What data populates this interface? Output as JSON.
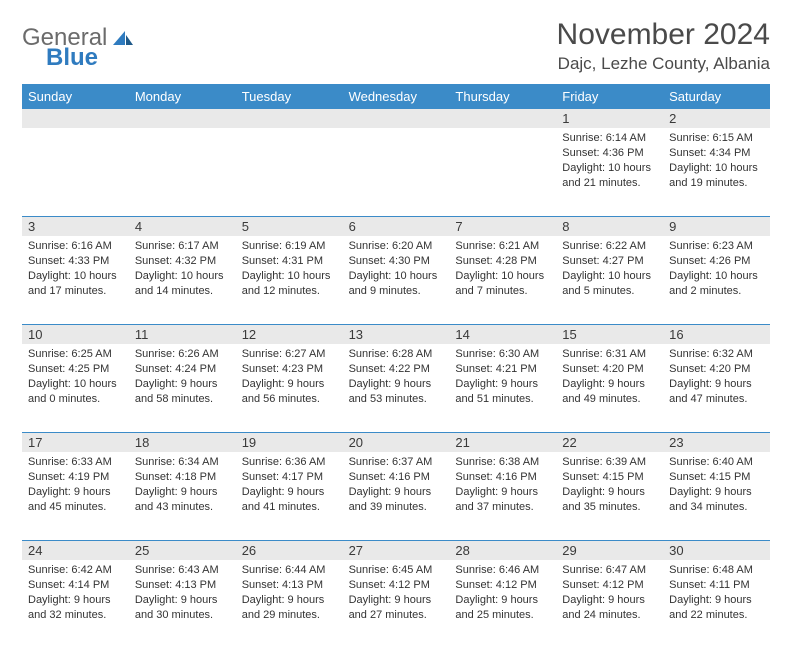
{
  "logo": {
    "general": "General",
    "blue": "Blue"
  },
  "title": "November 2024",
  "location": "Dajc, Lezhe County, Albania",
  "colors": {
    "header_bg": "#3b8bc8",
    "header_text": "#ffffff",
    "daynum_bg": "#e9e9e9",
    "divider": "#3b8bc8",
    "text": "#333333"
  },
  "day_names": [
    "Sunday",
    "Monday",
    "Tuesday",
    "Wednesday",
    "Thursday",
    "Friday",
    "Saturday"
  ],
  "weeks": [
    [
      null,
      null,
      null,
      null,
      null,
      {
        "n": "1",
        "sr": "Sunrise: 6:14 AM",
        "ss": "Sunset: 4:36 PM",
        "d1": "Daylight: 10 hours",
        "d2": "and 21 minutes."
      },
      {
        "n": "2",
        "sr": "Sunrise: 6:15 AM",
        "ss": "Sunset: 4:34 PM",
        "d1": "Daylight: 10 hours",
        "d2": "and 19 minutes."
      }
    ],
    [
      {
        "n": "3",
        "sr": "Sunrise: 6:16 AM",
        "ss": "Sunset: 4:33 PM",
        "d1": "Daylight: 10 hours",
        "d2": "and 17 minutes."
      },
      {
        "n": "4",
        "sr": "Sunrise: 6:17 AM",
        "ss": "Sunset: 4:32 PM",
        "d1": "Daylight: 10 hours",
        "d2": "and 14 minutes."
      },
      {
        "n": "5",
        "sr": "Sunrise: 6:19 AM",
        "ss": "Sunset: 4:31 PM",
        "d1": "Daylight: 10 hours",
        "d2": "and 12 minutes."
      },
      {
        "n": "6",
        "sr": "Sunrise: 6:20 AM",
        "ss": "Sunset: 4:30 PM",
        "d1": "Daylight: 10 hours",
        "d2": "and 9 minutes."
      },
      {
        "n": "7",
        "sr": "Sunrise: 6:21 AM",
        "ss": "Sunset: 4:28 PM",
        "d1": "Daylight: 10 hours",
        "d2": "and 7 minutes."
      },
      {
        "n": "8",
        "sr": "Sunrise: 6:22 AM",
        "ss": "Sunset: 4:27 PM",
        "d1": "Daylight: 10 hours",
        "d2": "and 5 minutes."
      },
      {
        "n": "9",
        "sr": "Sunrise: 6:23 AM",
        "ss": "Sunset: 4:26 PM",
        "d1": "Daylight: 10 hours",
        "d2": "and 2 minutes."
      }
    ],
    [
      {
        "n": "10",
        "sr": "Sunrise: 6:25 AM",
        "ss": "Sunset: 4:25 PM",
        "d1": "Daylight: 10 hours",
        "d2": "and 0 minutes."
      },
      {
        "n": "11",
        "sr": "Sunrise: 6:26 AM",
        "ss": "Sunset: 4:24 PM",
        "d1": "Daylight: 9 hours",
        "d2": "and 58 minutes."
      },
      {
        "n": "12",
        "sr": "Sunrise: 6:27 AM",
        "ss": "Sunset: 4:23 PM",
        "d1": "Daylight: 9 hours",
        "d2": "and 56 minutes."
      },
      {
        "n": "13",
        "sr": "Sunrise: 6:28 AM",
        "ss": "Sunset: 4:22 PM",
        "d1": "Daylight: 9 hours",
        "d2": "and 53 minutes."
      },
      {
        "n": "14",
        "sr": "Sunrise: 6:30 AM",
        "ss": "Sunset: 4:21 PM",
        "d1": "Daylight: 9 hours",
        "d2": "and 51 minutes."
      },
      {
        "n": "15",
        "sr": "Sunrise: 6:31 AM",
        "ss": "Sunset: 4:20 PM",
        "d1": "Daylight: 9 hours",
        "d2": "and 49 minutes."
      },
      {
        "n": "16",
        "sr": "Sunrise: 6:32 AM",
        "ss": "Sunset: 4:20 PM",
        "d1": "Daylight: 9 hours",
        "d2": "and 47 minutes."
      }
    ],
    [
      {
        "n": "17",
        "sr": "Sunrise: 6:33 AM",
        "ss": "Sunset: 4:19 PM",
        "d1": "Daylight: 9 hours",
        "d2": "and 45 minutes."
      },
      {
        "n": "18",
        "sr": "Sunrise: 6:34 AM",
        "ss": "Sunset: 4:18 PM",
        "d1": "Daylight: 9 hours",
        "d2": "and 43 minutes."
      },
      {
        "n": "19",
        "sr": "Sunrise: 6:36 AM",
        "ss": "Sunset: 4:17 PM",
        "d1": "Daylight: 9 hours",
        "d2": "and 41 minutes."
      },
      {
        "n": "20",
        "sr": "Sunrise: 6:37 AM",
        "ss": "Sunset: 4:16 PM",
        "d1": "Daylight: 9 hours",
        "d2": "and 39 minutes."
      },
      {
        "n": "21",
        "sr": "Sunrise: 6:38 AM",
        "ss": "Sunset: 4:16 PM",
        "d1": "Daylight: 9 hours",
        "d2": "and 37 minutes."
      },
      {
        "n": "22",
        "sr": "Sunrise: 6:39 AM",
        "ss": "Sunset: 4:15 PM",
        "d1": "Daylight: 9 hours",
        "d2": "and 35 minutes."
      },
      {
        "n": "23",
        "sr": "Sunrise: 6:40 AM",
        "ss": "Sunset: 4:15 PM",
        "d1": "Daylight: 9 hours",
        "d2": "and 34 minutes."
      }
    ],
    [
      {
        "n": "24",
        "sr": "Sunrise: 6:42 AM",
        "ss": "Sunset: 4:14 PM",
        "d1": "Daylight: 9 hours",
        "d2": "and 32 minutes."
      },
      {
        "n": "25",
        "sr": "Sunrise: 6:43 AM",
        "ss": "Sunset: 4:13 PM",
        "d1": "Daylight: 9 hours",
        "d2": "and 30 minutes."
      },
      {
        "n": "26",
        "sr": "Sunrise: 6:44 AM",
        "ss": "Sunset: 4:13 PM",
        "d1": "Daylight: 9 hours",
        "d2": "and 29 minutes."
      },
      {
        "n": "27",
        "sr": "Sunrise: 6:45 AM",
        "ss": "Sunset: 4:12 PM",
        "d1": "Daylight: 9 hours",
        "d2": "and 27 minutes."
      },
      {
        "n": "28",
        "sr": "Sunrise: 6:46 AM",
        "ss": "Sunset: 4:12 PM",
        "d1": "Daylight: 9 hours",
        "d2": "and 25 minutes."
      },
      {
        "n": "29",
        "sr": "Sunrise: 6:47 AM",
        "ss": "Sunset: 4:12 PM",
        "d1": "Daylight: 9 hours",
        "d2": "and 24 minutes."
      },
      {
        "n": "30",
        "sr": "Sunrise: 6:48 AM",
        "ss": "Sunset: 4:11 PM",
        "d1": "Daylight: 9 hours",
        "d2": "and 22 minutes."
      }
    ]
  ]
}
